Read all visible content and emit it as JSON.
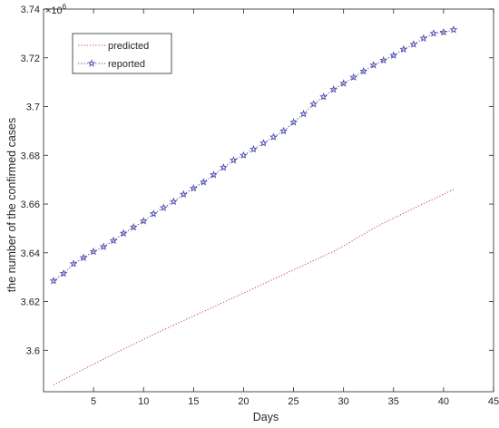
{
  "chart_data": {
    "type": "line",
    "title": "",
    "xlabel": "Days",
    "ylabel": "the number of the confirmed cases",
    "y_exponent_label": "×10",
    "y_exponent_power": "6",
    "xlim": [
      0,
      45
    ],
    "ylim": [
      3.583,
      3.74
    ],
    "xticks": [
      5,
      10,
      15,
      20,
      25,
      30,
      35,
      40,
      45
    ],
    "yticks": [
      3.6,
      3.62,
      3.64,
      3.66,
      3.68,
      3.7,
      3.72,
      3.74
    ],
    "ytick_labels": [
      "3.6",
      "3.62",
      "3.64",
      "3.66",
      "3.68",
      "3.7",
      "3.72",
      "3.74"
    ],
    "grid": false,
    "legend_position": "top-left",
    "series": [
      {
        "name": "predicted",
        "color": "#c0404f",
        "line_style": "dotted",
        "marker": "none",
        "x": [
          1,
          2,
          3,
          4,
          5,
          6,
          7,
          8,
          9,
          10,
          11,
          12,
          13,
          14,
          15,
          16,
          17,
          18,
          19,
          20,
          21,
          22,
          23,
          24,
          25,
          26,
          27,
          28,
          29,
          30,
          31,
          32,
          33,
          34,
          35,
          36,
          37,
          38,
          39,
          40,
          41
        ],
        "values": [
          3.5858,
          3.5879,
          3.5901,
          3.5922,
          3.5943,
          3.5964,
          3.5985,
          3.6005,
          3.6025,
          3.6045,
          3.6065,
          3.6084,
          3.6103,
          3.6122,
          3.6141,
          3.6159,
          3.6178,
          3.6197,
          3.6216,
          3.6235,
          3.6254,
          3.6273,
          3.6292,
          3.6311,
          3.633,
          3.6349,
          3.6368,
          3.6387,
          3.6406,
          3.6428,
          3.6452,
          3.6476,
          3.65,
          3.6522,
          3.6542,
          3.6562,
          3.6582,
          3.6602,
          3.662,
          3.664,
          3.666
        ]
      },
      {
        "name": "reported",
        "color": "#4a4aa8",
        "line_style": "dotted",
        "marker": "star",
        "x": [
          1,
          2,
          3,
          4,
          5,
          6,
          7,
          8,
          9,
          10,
          11,
          12,
          13,
          14,
          15,
          16,
          17,
          18,
          19,
          20,
          21,
          22,
          23,
          24,
          25,
          26,
          27,
          28,
          29,
          30,
          31,
          32,
          33,
          34,
          35,
          36,
          37,
          38,
          39,
          40,
          41
        ],
        "values": [
          3.6285,
          3.6315,
          3.6355,
          3.638,
          3.6405,
          3.6425,
          3.645,
          3.648,
          3.6505,
          3.653,
          3.656,
          3.6585,
          3.661,
          3.664,
          3.6665,
          3.669,
          3.672,
          3.675,
          3.678,
          3.68,
          3.6825,
          3.685,
          3.6875,
          3.69,
          3.6935,
          3.697,
          3.701,
          3.704,
          3.707,
          3.7095,
          3.712,
          3.7145,
          3.717,
          3.719,
          3.721,
          3.7235,
          3.7255,
          3.728,
          3.73,
          3.7305,
          3.7315
        ]
      }
    ]
  }
}
